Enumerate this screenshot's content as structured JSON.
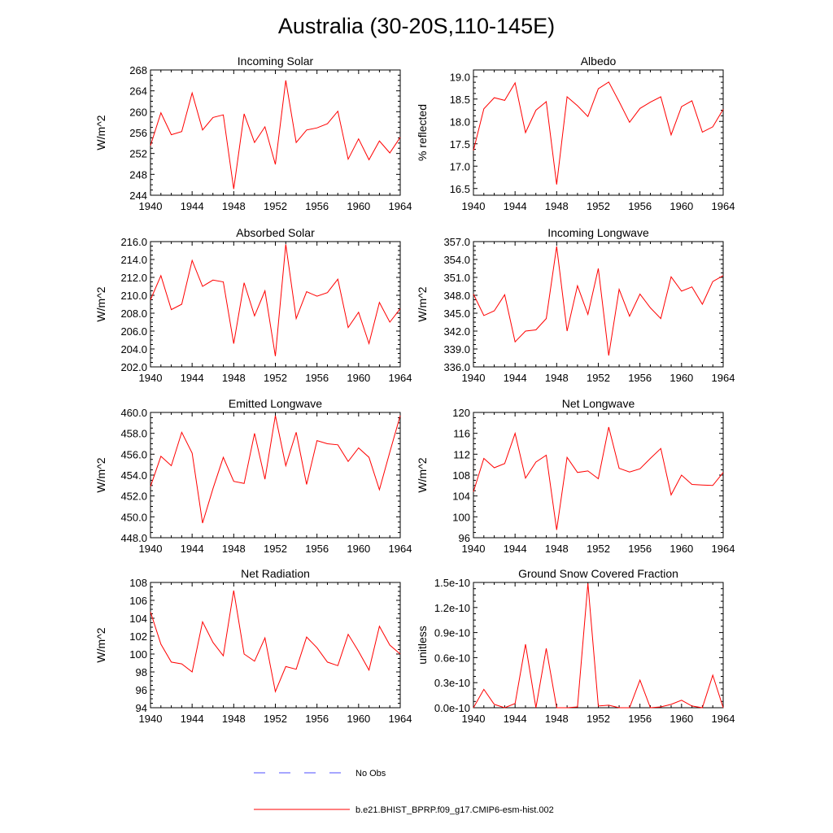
{
  "figure": {
    "title": "Australia (30-20S,110-145E)"
  },
  "legend": [
    {
      "label": "No Obs",
      "color": "#4c4cff",
      "style": "dashed"
    },
    {
      "label": "b.e21.BHIST_BPRP.f09_g17.CMIP6-esm-hist.002",
      "color": "#ff0000",
      "style": "solid"
    }
  ],
  "chart_data": [
    {
      "type": "line",
      "title": "Incoming Solar",
      "xlabel": "",
      "ylabel": "W/m^2",
      "xlim": [
        1940,
        1964
      ],
      "ylim": [
        244,
        268
      ],
      "xticks": [
        "1940",
        "1944",
        "1948",
        "1952",
        "1956",
        "1960",
        "1964"
      ],
      "yticks": [
        "244",
        "248",
        "252",
        "256",
        "260",
        "264",
        "268"
      ],
      "x": [
        1940,
        1941,
        1942,
        1943,
        1944,
        1945,
        1946,
        1947,
        1948,
        1949,
        1950,
        1951,
        1952,
        1953,
        1954,
        1955,
        1956,
        1957,
        1958,
        1959,
        1960,
        1961,
        1962,
        1963,
        1964
      ],
      "series": [
        {
          "name": "b.e21.BHIST_BPRP.f09_g17.CMIP6-esm-hist.002",
          "color": "#ff0000",
          "values": [
            253.5,
            259.8,
            255.6,
            256.2,
            263.6,
            256.5,
            258.9,
            259.4,
            245.2,
            259.6,
            254.1,
            257.1,
            249.9,
            266.0,
            254.1,
            256.5,
            256.9,
            257.7,
            260.1,
            250.9,
            254.8,
            250.8,
            254.4,
            252.1,
            255.1
          ]
        }
      ]
    },
    {
      "type": "line",
      "title": "Albedo",
      "xlabel": "",
      "ylabel": "% reflected",
      "xlim": [
        1940,
        1964
      ],
      "ylim": [
        16.35,
        19.15
      ],
      "xticks": [
        "1940",
        "1944",
        "1948",
        "1952",
        "1956",
        "1960",
        "1964"
      ],
      "yticks": [
        "16.5",
        "17.0",
        "17.5",
        "18.0",
        "18.5",
        "19.0"
      ],
      "x": [
        1940,
        1941,
        1942,
        1943,
        1944,
        1945,
        1946,
        1947,
        1948,
        1949,
        1950,
        1951,
        1952,
        1953,
        1954,
        1955,
        1956,
        1957,
        1958,
        1959,
        1960,
        1961,
        1962,
        1963,
        1964
      ],
      "series": [
        {
          "name": "b.e21.BHIST_BPRP.f09_g17.CMIP6-esm-hist.002",
          "color": "#ff0000",
          "values": [
            17.35,
            18.28,
            18.53,
            18.47,
            18.86,
            17.75,
            18.25,
            18.44,
            16.59,
            18.55,
            18.35,
            18.11,
            18.73,
            18.88,
            18.44,
            17.98,
            18.29,
            18.43,
            18.55,
            17.7,
            18.33,
            18.46,
            17.76,
            17.88,
            18.27
          ]
        }
      ]
    },
    {
      "type": "line",
      "title": "Absorbed Solar",
      "xlabel": "",
      "ylabel": "W/m^2",
      "xlim": [
        1940,
        1964
      ],
      "ylim": [
        202,
        216
      ],
      "xticks": [
        "1940",
        "1944",
        "1948",
        "1952",
        "1956",
        "1960",
        "1964"
      ],
      "yticks": [
        "202.0",
        "204.0",
        "206.0",
        "208.0",
        "210.0",
        "212.0",
        "214.0",
        "216.0"
      ],
      "x": [
        1940,
        1941,
        1942,
        1943,
        1944,
        1945,
        1946,
        1947,
        1948,
        1949,
        1950,
        1951,
        1952,
        1953,
        1954,
        1955,
        1956,
        1957,
        1958,
        1959,
        1960,
        1961,
        1962,
        1963,
        1964
      ],
      "series": [
        {
          "name": "b.e21.BHIST_BPRP.f09_g17.CMIP6-esm-hist.002",
          "color": "#ff0000",
          "values": [
            209.5,
            212.2,
            208.4,
            209.0,
            213.9,
            211.0,
            211.7,
            211.5,
            204.6,
            211.4,
            207.7,
            210.5,
            203.2,
            215.7,
            207.4,
            210.4,
            209.9,
            210.3,
            211.8,
            206.4,
            208.1,
            204.6,
            209.2,
            207.0,
            208.5
          ]
        }
      ]
    },
    {
      "type": "line",
      "title": "Incoming Longwave",
      "xlabel": "",
      "ylabel": "W/m^2",
      "xlim": [
        1940,
        1964
      ],
      "ylim": [
        336,
        357
      ],
      "xticks": [
        "1940",
        "1944",
        "1948",
        "1952",
        "1956",
        "1960",
        "1964"
      ],
      "yticks": [
        "336.0",
        "339.0",
        "342.0",
        "345.0",
        "348.0",
        "351.0",
        "354.0",
        "357.0"
      ],
      "x": [
        1940,
        1941,
        1942,
        1943,
        1944,
        1945,
        1946,
        1947,
        1948,
        1949,
        1950,
        1951,
        1952,
        1953,
        1954,
        1955,
        1956,
        1957,
        1958,
        1959,
        1960,
        1961,
        1962,
        1963,
        1964
      ],
      "series": [
        {
          "name": "b.e21.BHIST_BPRP.f09_g17.CMIP6-esm-hist.002",
          "color": "#ff0000",
          "values": [
            348.2,
            344.6,
            345.4,
            348.1,
            340.2,
            342.0,
            342.2,
            344.1,
            356.2,
            342.0,
            349.6,
            344.8,
            352.5,
            337.9,
            349.0,
            344.5,
            348.2,
            345.9,
            344.1,
            351.1,
            348.7,
            349.4,
            346.5,
            350.3,
            351.3
          ]
        }
      ]
    },
    {
      "type": "line",
      "title": "Emitted Longwave",
      "xlabel": "",
      "ylabel": "W/m^2",
      "xlim": [
        1940,
        1964
      ],
      "ylim": [
        448,
        460
      ],
      "xticks": [
        "1940",
        "1944",
        "1948",
        "1952",
        "1956",
        "1960",
        "1964"
      ],
      "yticks": [
        "448.0",
        "450.0",
        "452.0",
        "454.0",
        "456.0",
        "458.0",
        "460.0"
      ],
      "x": [
        1940,
        1941,
        1942,
        1943,
        1944,
        1945,
        1946,
        1947,
        1948,
        1949,
        1950,
        1951,
        1952,
        1953,
        1954,
        1955,
        1956,
        1957,
        1958,
        1959,
        1960,
        1961,
        1962,
        1963,
        1964
      ],
      "series": [
        {
          "name": "b.e21.BHIST_BPRP.f09_g17.CMIP6-esm-hist.002",
          "color": "#ff0000",
          "values": [
            452.9,
            455.8,
            454.9,
            458.1,
            456.1,
            449.4,
            452.7,
            455.7,
            453.4,
            453.2,
            458.0,
            453.6,
            459.7,
            454.9,
            458.1,
            453.1,
            457.3,
            457.0,
            456.9,
            455.3,
            456.6,
            455.7,
            452.6,
            456.2,
            459.7
          ]
        }
      ]
    },
    {
      "type": "line",
      "title": "Net Longwave",
      "xlabel": "",
      "ylabel": "W/m^2",
      "xlim": [
        1940,
        1964
      ],
      "ylim": [
        96,
        120
      ],
      "xticks": [
        "1940",
        "1944",
        "1948",
        "1952",
        "1956",
        "1960",
        "1964"
      ],
      "yticks": [
        "96",
        "100",
        "104",
        "108",
        "112",
        "116",
        "120"
      ],
      "x": [
        1940,
        1941,
        1942,
        1943,
        1944,
        1945,
        1946,
        1947,
        1948,
        1949,
        1950,
        1951,
        1952,
        1953,
        1954,
        1955,
        1956,
        1957,
        1958,
        1959,
        1960,
        1961,
        1962,
        1963,
        1964
      ],
      "series": [
        {
          "name": "b.e21.BHIST_BPRP.f09_g17.CMIP6-esm-hist.002",
          "color": "#ff0000",
          "values": [
            104.8,
            111.2,
            109.4,
            110.2,
            116.0,
            107.4,
            110.5,
            111.8,
            97.5,
            111.4,
            108.5,
            108.8,
            107.3,
            117.2,
            109.3,
            108.6,
            109.2,
            111.2,
            113.1,
            104.2,
            108.0,
            106.2,
            106.1,
            106.0,
            108.5
          ]
        }
      ]
    },
    {
      "type": "line",
      "title": "Net Radiation",
      "xlabel": "",
      "ylabel": "W/m^2",
      "xlim": [
        1940,
        1964
      ],
      "ylim": [
        94,
        108
      ],
      "xticks": [
        "1940",
        "1944",
        "1948",
        "1952",
        "1956",
        "1960",
        "1964"
      ],
      "yticks": [
        "94",
        "96",
        "98",
        "100",
        "102",
        "104",
        "106",
        "108"
      ],
      "x": [
        1940,
        1941,
        1942,
        1943,
        1944,
        1945,
        1946,
        1947,
        1948,
        1949,
        1950,
        1951,
        1952,
        1953,
        1954,
        1955,
        1956,
        1957,
        1958,
        1959,
        1960,
        1961,
        1962,
        1963,
        1964
      ],
      "series": [
        {
          "name": "b.e21.BHIST_BPRP.f09_g17.CMIP6-esm-hist.002",
          "color": "#ff0000",
          "values": [
            104.7,
            101.1,
            99.1,
            98.9,
            98.0,
            103.6,
            101.3,
            99.8,
            107.1,
            100.0,
            99.2,
            101.8,
            95.8,
            98.6,
            98.3,
            101.9,
            100.7,
            99.1,
            98.7,
            102.2,
            100.3,
            98.2,
            103.1,
            101.0,
            100.0
          ]
        }
      ]
    },
    {
      "type": "line",
      "title": "Ground Snow Covered Fraction",
      "xlabel": "",
      "ylabel": "unitless",
      "xlim": [
        1940,
        1964
      ],
      "ylim": [
        0,
        1.5e-10
      ],
      "xticks": [
        "1940",
        "1944",
        "1948",
        "1952",
        "1956",
        "1960",
        "1964"
      ],
      "yticks": [
        "0.0e-10",
        "0.3e-10",
        "0.6e-10",
        "0.9e-10",
        "1.2e-10",
        "1.5e-10"
      ],
      "x": [
        1940,
        1941,
        1942,
        1943,
        1944,
        1945,
        1946,
        1947,
        1948,
        1949,
        1950,
        1951,
        1952,
        1953,
        1954,
        1955,
        1956,
        1957,
        1958,
        1959,
        1960,
        1961,
        1962,
        1963,
        1964
      ],
      "series": [
        {
          "name": "b.e21.BHIST_BPRP.f09_g17.CMIP6-esm-hist.002",
          "color": "#ff0000",
          "values": [
            0.0,
            2.2e-11,
            4e-12,
            0.0,
            5e-12,
            7.6e-11,
            0.0,
            7.1e-11,
            0.0,
            0.0,
            1e-12,
            1.49e-10,
            2e-12,
            3e-12,
            0.0,
            0.0,
            3.3e-11,
            0.0,
            1e-12,
            4e-12,
            9e-12,
            2e-12,
            0.0,
            3.9e-11,
            0.0
          ]
        }
      ]
    }
  ]
}
